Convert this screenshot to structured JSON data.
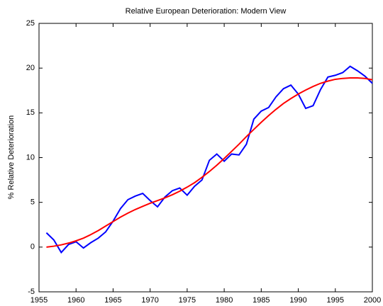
{
  "chart_data": {
    "type": "line",
    "title": "Relative European Deterioration: Modern View",
    "ylabel": "% Relative Deterioration",
    "x": [
      1956,
      1957,
      1958,
      1959,
      1960,
      1961,
      1962,
      1963,
      1964,
      1965,
      1966,
      1967,
      1968,
      1969,
      1970,
      1971,
      1972,
      1973,
      1974,
      1975,
      1976,
      1977,
      1978,
      1979,
      1980,
      1981,
      1982,
      1983,
      1984,
      1985,
      1986,
      1987,
      1988,
      1989,
      1990,
      1991,
      1992,
      1993,
      1994,
      1995,
      1996,
      1997,
      1998,
      1999,
      2000
    ],
    "series": [
      {
        "color": "#0000ff",
        "values": [
          1.6,
          0.8,
          -0.6,
          0.3,
          0.6,
          -0.1,
          0.5,
          1.0,
          1.7,
          2.9,
          4.3,
          5.3,
          5.7,
          6.0,
          5.2,
          4.5,
          5.6,
          6.3,
          6.6,
          5.8,
          6.8,
          7.5,
          9.7,
          10.4,
          9.6,
          10.4,
          10.3,
          11.5,
          14.3,
          15.2,
          15.6,
          16.8,
          17.7,
          18.1,
          17.1,
          15.5,
          15.8,
          17.6,
          19.0,
          19.2,
          19.5,
          20.2,
          19.7,
          19.1,
          18.3
        ]
      },
      {
        "color": "#ff0000",
        "values": [
          0.0,
          0.1,
          0.25,
          0.45,
          0.7,
          1.0,
          1.4,
          1.85,
          2.35,
          2.85,
          3.35,
          3.8,
          4.2,
          4.55,
          4.9,
          5.2,
          5.5,
          5.85,
          6.25,
          6.7,
          7.2,
          7.8,
          8.45,
          9.15,
          9.9,
          10.7,
          11.5,
          12.35,
          13.15,
          13.95,
          14.7,
          15.4,
          16.05,
          16.6,
          17.1,
          17.55,
          17.95,
          18.3,
          18.55,
          18.75,
          18.85,
          18.9,
          18.9,
          18.85,
          18.7
        ]
      }
    ],
    "xlim": [
      1955,
      2000
    ],
    "xticks": [
      1955,
      1960,
      1965,
      1970,
      1975,
      1980,
      1985,
      1990,
      1995,
      2000
    ],
    "ylim": [
      -5,
      25
    ],
    "yticks": [
      -5,
      0,
      5,
      10,
      15,
      20,
      25
    ]
  }
}
